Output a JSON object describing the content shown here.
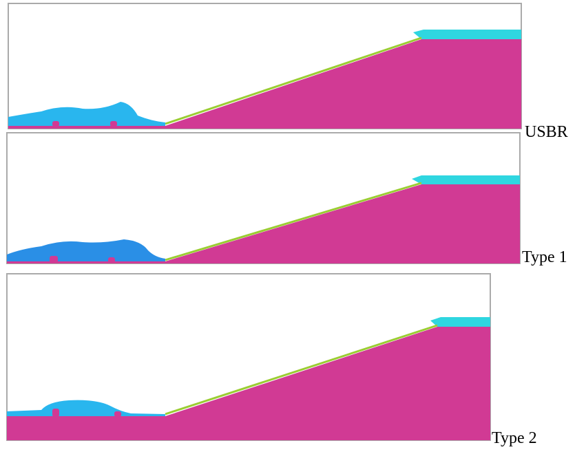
{
  "panels": [
    {
      "label": "USBR"
    },
    {
      "label": "Type 1"
    },
    {
      "label": "Type 2"
    }
  ]
}
